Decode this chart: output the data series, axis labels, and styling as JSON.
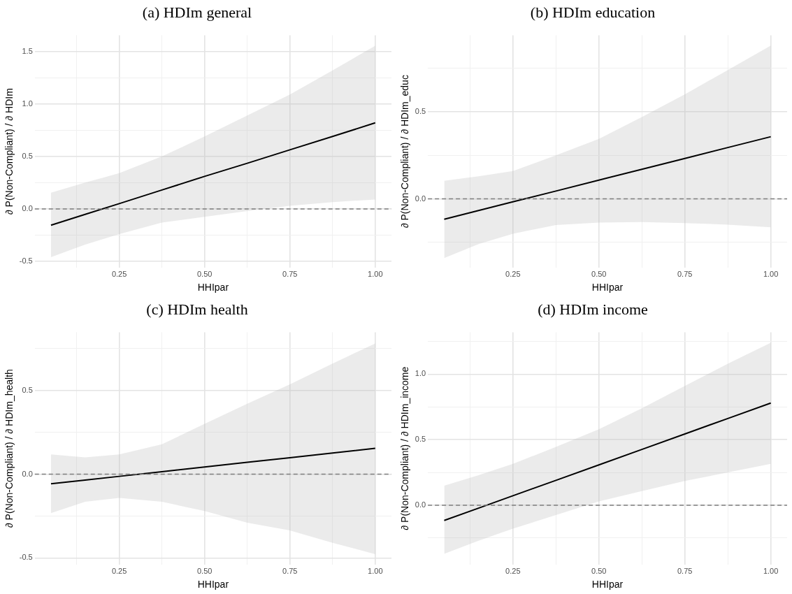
{
  "chart_data": [
    {
      "type": "line",
      "title": "(a) HDIm general",
      "xlabel": "HHIpar",
      "ylabel": "∂ P(Non-Compliant) / ∂ HDIm",
      "xlim": [
        0.0025,
        1.0475
      ],
      "xticks": [
        {
          "value": 0.125,
          "label": null
        },
        {
          "value": 0.25,
          "label": "0.25"
        },
        {
          "value": 0.375,
          "label": null
        },
        {
          "value": 0.5,
          "label": "0.50"
        },
        {
          "value": 0.625,
          "label": null
        },
        {
          "value": 0.75,
          "label": "0.75"
        },
        {
          "value": 0.875,
          "label": null
        },
        {
          "value": 1,
          "label": "1.00"
        }
      ],
      "ylim": [
        -0.56,
        1.655
      ],
      "yticks": [
        {
          "value": -0.5,
          "label": "-0.5"
        },
        {
          "value": -0.25,
          "label": null
        },
        {
          "value": 0,
          "label": "0.0"
        },
        {
          "value": 0.25,
          "label": null
        },
        {
          "value": 0.5,
          "label": "0.5"
        },
        {
          "value": 0.75,
          "label": null
        },
        {
          "value": 1,
          "label": "1.0"
        },
        {
          "value": 1.25,
          "label": null
        },
        {
          "value": 1.5,
          "label": "1.5"
        }
      ],
      "grid": true,
      "ref_lines": [
        {
          "axis": "y",
          "value": 0,
          "line_style": "dashed",
          "color": "#7f7f7f"
        }
      ],
      "series": [
        {
          "color": "#000000",
          "x": [
            0.05,
            0.15,
            0.25,
            0.375,
            0.5,
            0.625,
            0.75,
            0.875,
            1.0
          ],
          "values": [
            -0.155,
            -0.052,
            0.05,
            0.18,
            0.31,
            0.435,
            0.563,
            0.69,
            0.82
          ],
          "lower": [
            -0.46,
            -0.34,
            -0.24,
            -0.13,
            -0.075,
            -0.02,
            0.03,
            0.065,
            0.09
          ],
          "upper": [
            0.155,
            0.25,
            0.34,
            0.5,
            0.69,
            0.89,
            1.09,
            1.32,
            1.555
          ]
        }
      ]
    },
    {
      "type": "line",
      "title": "(b) HDIm education",
      "xlabel": "HHIpar",
      "ylabel": "∂ P(Non-Compliant) / ∂ HDIm_educ",
      "xlim": [
        0.0025,
        1.0475
      ],
      "xticks": [
        {
          "value": 0.125,
          "label": null
        },
        {
          "value": 0.25,
          "label": "0.25"
        },
        {
          "value": 0.375,
          "label": null
        },
        {
          "value": 0.5,
          "label": "0.50"
        },
        {
          "value": 0.625,
          "label": null
        },
        {
          "value": 0.75,
          "label": "0.75"
        },
        {
          "value": 0.875,
          "label": null
        },
        {
          "value": 1,
          "label": "1.00"
        }
      ],
      "ylim": [
        -0.395,
        0.94
      ],
      "yticks": [
        {
          "value": -0.25,
          "label": null
        },
        {
          "value": 0,
          "label": "0.0"
        },
        {
          "value": 0.25,
          "label": null
        },
        {
          "value": 0.5,
          "label": "0.5"
        },
        {
          "value": 0.75,
          "label": null
        }
      ],
      "grid": true,
      "ref_lines": [
        {
          "axis": "y",
          "value": 0,
          "line_style": "dashed",
          "color": "#7f7f7f"
        }
      ],
      "series": [
        {
          "color": "#000000",
          "x": [
            0.05,
            0.15,
            0.25,
            0.375,
            0.5,
            0.625,
            0.75,
            0.875,
            1.0
          ],
          "values": [
            -0.117,
            -0.067,
            -0.017,
            0.045,
            0.108,
            0.17,
            0.232,
            0.295,
            0.357
          ],
          "lower": [
            -0.34,
            -0.26,
            -0.2,
            -0.15,
            -0.136,
            -0.133,
            -0.139,
            -0.148,
            -0.163
          ],
          "upper": [
            0.104,
            0.13,
            0.16,
            0.25,
            0.345,
            0.47,
            0.6,
            0.74,
            0.88
          ]
        }
      ]
    },
    {
      "type": "line",
      "title": "(c) HDIm health",
      "xlabel": "HHIpar",
      "ylabel": "∂ P(Non-Compliant) / ∂ HDIm_health",
      "xlim": [
        0.0025,
        1.0475
      ],
      "xticks": [
        {
          "value": 0.125,
          "label": null
        },
        {
          "value": 0.25,
          "label": "0.25"
        },
        {
          "value": 0.375,
          "label": null
        },
        {
          "value": 0.5,
          "label": "0.50"
        },
        {
          "value": 0.625,
          "label": null
        },
        {
          "value": 0.75,
          "label": "0.75"
        },
        {
          "value": 0.875,
          "label": null
        },
        {
          "value": 1,
          "label": "1.00"
        }
      ],
      "ylim": [
        -0.54,
        0.847
      ],
      "yticks": [
        {
          "value": -0.5,
          "label": "-0.5"
        },
        {
          "value": -0.25,
          "label": null
        },
        {
          "value": 0,
          "label": "0.0"
        },
        {
          "value": 0.25,
          "label": null
        },
        {
          "value": 0.5,
          "label": "0.5"
        },
        {
          "value": 0.75,
          "label": null
        }
      ],
      "grid": true,
      "ref_lines": [
        {
          "axis": "y",
          "value": 0,
          "line_style": "dashed",
          "color": "#7f7f7f"
        }
      ],
      "series": [
        {
          "color": "#000000",
          "x": [
            0.05,
            0.15,
            0.25,
            0.375,
            0.5,
            0.625,
            0.75,
            0.875,
            1.0
          ],
          "values": [
            -0.057,
            -0.035,
            -0.013,
            0.015,
            0.043,
            0.071,
            0.098,
            0.126,
            0.154
          ],
          "lower": [
            -0.232,
            -0.165,
            -0.142,
            -0.165,
            -0.22,
            -0.29,
            -0.336,
            -0.41,
            -0.477
          ],
          "upper": [
            0.118,
            0.1,
            0.118,
            0.178,
            0.3,
            0.42,
            0.536,
            0.66,
            0.78
          ]
        }
      ]
    },
    {
      "type": "line",
      "title": "(d) HDIm income",
      "xlabel": "HHIpar",
      "ylabel": "∂ P(Non-Compliant) / ∂ HDIm_income",
      "xlim": [
        0.0025,
        1.0475
      ],
      "xticks": [
        {
          "value": 0.125,
          "label": null
        },
        {
          "value": 0.25,
          "label": "0.25"
        },
        {
          "value": 0.375,
          "label": null
        },
        {
          "value": 0.5,
          "label": "0.50"
        },
        {
          "value": 0.625,
          "label": null
        },
        {
          "value": 0.75,
          "label": "0.75"
        },
        {
          "value": 0.875,
          "label": null
        },
        {
          "value": 1,
          "label": "1.00"
        }
      ],
      "ylim": [
        -0.453,
        1.32
      ],
      "yticks": [
        {
          "value": -0.25,
          "label": null
        },
        {
          "value": 0,
          "label": "0.0"
        },
        {
          "value": 0.25,
          "label": null
        },
        {
          "value": 0.5,
          "label": "0.5"
        },
        {
          "value": 0.75,
          "label": null
        },
        {
          "value": 1,
          "label": "1.0"
        },
        {
          "value": 1.25,
          "label": null
        }
      ],
      "grid": true,
      "ref_lines": [
        {
          "axis": "y",
          "value": 0,
          "line_style": "dashed",
          "color": "#7f7f7f"
        }
      ],
      "series": [
        {
          "color": "#000000",
          "x": [
            0.05,
            0.15,
            0.25,
            0.375,
            0.5,
            0.625,
            0.75,
            0.875,
            1.0
          ],
          "values": [
            -0.116,
            -0.022,
            0.073,
            0.19,
            0.308,
            0.426,
            0.544,
            0.662,
            0.78
          ],
          "lower": [
            -0.371,
            -0.27,
            -0.178,
            -0.075,
            0.03,
            0.108,
            0.186,
            0.25,
            0.316
          ],
          "upper": [
            0.149,
            0.23,
            0.316,
            0.445,
            0.58,
            0.74,
            0.91,
            1.08,
            1.24
          ]
        }
      ]
    }
  ]
}
